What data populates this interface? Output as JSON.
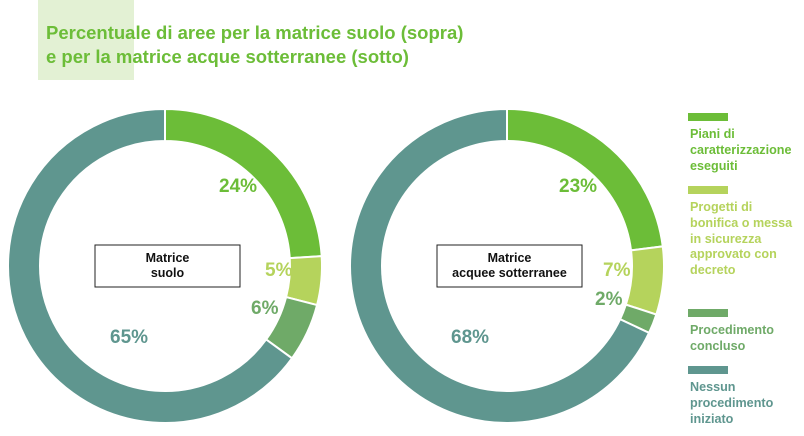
{
  "title": {
    "line1": "Percentuale di aree per la matrice suolo (sopra)",
    "line2": "e per la matrice acque sotterranee (sotto)"
  },
  "colors": {
    "title": "#6cbd38",
    "series": [
      "#6cbd38",
      "#b5d35c",
      "#6faa68",
      "#5f968f"
    ]
  },
  "legend": {
    "items": [
      {
        "label": "Piani di caratterizzazione eseguiti",
        "color": "#6cbd38"
      },
      {
        "label": "Progetti di bonifica o messa in sicurezza approvato con decreto",
        "color": "#b5d35c"
      },
      {
        "label": "Procedimento concluso",
        "color": "#6faa68"
      },
      {
        "label": "Nessun procedimento iniziato",
        "color": "#5f968f"
      }
    ]
  },
  "chart_data": [
    {
      "type": "pie",
      "center_label": "Matrice\nsuolo",
      "categories": [
        "Piani di caratterizzazione eseguiti",
        "Progetti di bonifica o messa in sicurezza approvato con decreto",
        "Procedimento concluso",
        "Nessun procedimento iniziato"
      ],
      "values": [
        24,
        5,
        6,
        65
      ],
      "labels": [
        "24%",
        "5%",
        "6%",
        "65%"
      ],
      "colors": [
        "#6cbd38",
        "#b5d35c",
        "#6faa68",
        "#5f968f"
      ],
      "label_colors": [
        "#6cbd38",
        "#b5d35c",
        "#6faa68",
        "#5f968f"
      ]
    },
    {
      "type": "pie",
      "center_label": "Matrice\nacquee sotterranee",
      "categories": [
        "Piani di caratterizzazione eseguiti",
        "Progetti di bonifica o messa in sicurezza approvato con decreto",
        "Procedimento concluso",
        "Nessun procedimento iniziato"
      ],
      "values": [
        23,
        7,
        2,
        68
      ],
      "labels": [
        "23%",
        "7%",
        "2%",
        "68%"
      ],
      "colors": [
        "#6cbd38",
        "#b5d35c",
        "#6faa68",
        "#5f968f"
      ],
      "label_colors": [
        "#6cbd38",
        "#b5d35c",
        "#6faa68",
        "#5f968f"
      ]
    }
  ]
}
